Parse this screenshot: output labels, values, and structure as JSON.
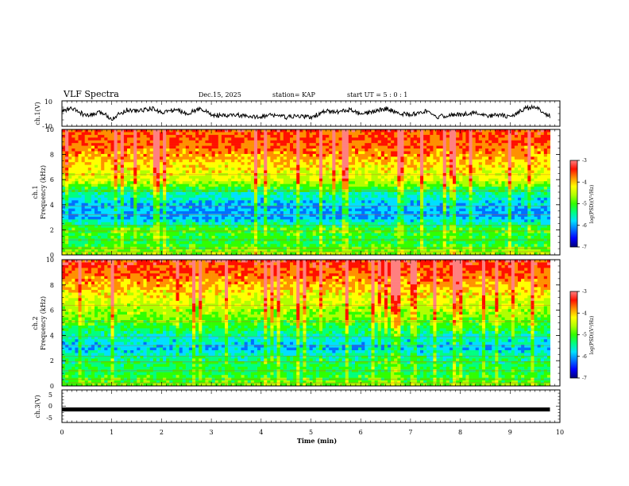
{
  "header": {
    "title": "VLF Spectra",
    "date": "Dec.15, 2025",
    "station": "station= KAP",
    "start": "start  UT =  5 : 0  : 1"
  },
  "colors": {
    "spectrum_scale": [
      "#00007a",
      "#0000ff",
      "#0070ff",
      "#00e0ff",
      "#00ff80",
      "#30ff00",
      "#b0ff00",
      "#ffff00",
      "#ff9000",
      "#ff1000",
      "#ff8080",
      "#ffffff"
    ],
    "trace": "#000000",
    "axis": "#000000"
  },
  "chart_data": [
    {
      "id": "ch1_waveform",
      "type": "line",
      "ylabel": "ch.1(V)",
      "ylim": [
        -10,
        10
      ],
      "yticks": [
        "10",
        "-10"
      ],
      "xlim": [
        0,
        10
      ],
      "description_points_note": "Noisy voltage trace; approximate envelope samples",
      "x": [
        0,
        0.2,
        0.5,
        0.8,
        1.0,
        1.3,
        1.5,
        1.8,
        2.0,
        2.3,
        2.5,
        2.8,
        3.0,
        3.3,
        3.5,
        3.8,
        4.0,
        4.3,
        4.5,
        4.8,
        5.0,
        5.3,
        5.5,
        5.8,
        6.0,
        6.3,
        6.5,
        6.8,
        7.0,
        7.3,
        7.5,
        7.8,
        8.0,
        8.3,
        8.5,
        8.8,
        9.0,
        9.3,
        9.5,
        9.8
      ],
      "values": [
        2,
        4,
        -2,
        1,
        -4,
        3,
        2,
        4,
        1,
        3,
        0,
        4,
        -1,
        -2,
        -1,
        -3,
        -2,
        -1,
        -3,
        -2,
        -3,
        2,
        1,
        3,
        -1,
        2,
        4,
        0,
        -1,
        2,
        -3,
        -1,
        -1,
        1,
        -2,
        -1,
        -3,
        4,
        5,
        -2
      ]
    },
    {
      "id": "ch1_spectrogram",
      "type": "heatmap",
      "ylabel": "ch.1\nFrequency (kHz)",
      "ylabel_line1": "ch.1",
      "ylabel_line2": "Frequency (kHz)",
      "ylim": [
        0,
        10
      ],
      "yticks": [
        "0",
        "2",
        "4",
        "6",
        "8",
        "10"
      ],
      "xlim": [
        0,
        10
      ],
      "colorbar": {
        "label": "log(PSD)(V²/Hz)",
        "range": [
          -7,
          -3
        ],
        "ticks": [
          "-3",
          "-4",
          "-5",
          "-6",
          "-7"
        ]
      },
      "band_levels": {
        "frequency_khz": [
          0,
          1,
          2,
          3,
          4,
          5,
          6,
          7,
          8,
          9,
          10
        ],
        "log_psd": [
          -4.6,
          -5.2,
          -5.0,
          -6.0,
          -5.9,
          -5.4,
          -4.4,
          -4.2,
          -3.8,
          -3.6,
          -3.5
        ]
      }
    },
    {
      "id": "ch2_spectrogram",
      "type": "heatmap",
      "ylabel": "ch.2\nFrequency (kHz)",
      "ylabel_line1": "ch.2",
      "ylabel_line2": "Frequency (kHz)",
      "ylim": [
        0,
        10
      ],
      "yticks": [
        "0",
        "2",
        "4",
        "6",
        "8",
        "10"
      ],
      "xlim": [
        0,
        10
      ],
      "colorbar": {
        "label": "log(PSD)(V²/Hz)",
        "range": [
          -7,
          -3
        ],
        "ticks": [
          "-3",
          "-4",
          "-5",
          "-6",
          "-7"
        ]
      },
      "band_levels": {
        "frequency_khz": [
          0,
          1,
          2,
          3,
          4,
          5,
          6,
          7,
          8,
          9,
          10
        ],
        "log_psd": [
          -4.8,
          -5.2,
          -5.3,
          -5.9,
          -5.5,
          -5.0,
          -4.6,
          -4.3,
          -3.9,
          -3.6,
          -3.4
        ]
      }
    },
    {
      "id": "ch3_waveform",
      "type": "line",
      "ylabel": "ch.3(V)",
      "ylim": [
        -5,
        5
      ],
      "yticks": [
        "5",
        "0",
        "-5"
      ],
      "xlim": [
        0,
        10
      ],
      "x": [
        0,
        9.8
      ],
      "values": [
        -1,
        -1
      ],
      "xlabel": "Time (min)",
      "xticks": [
        "0",
        "1",
        "2",
        "3",
        "4",
        "5",
        "6",
        "7",
        "8",
        "9",
        "10"
      ]
    }
  ]
}
